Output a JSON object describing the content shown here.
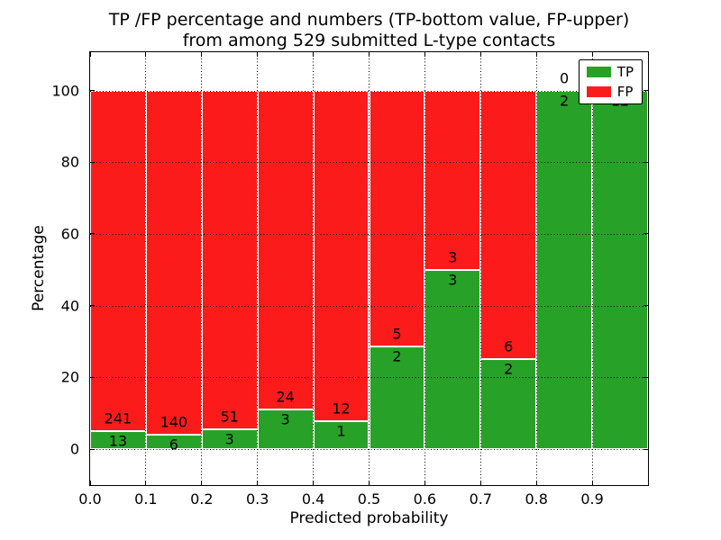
{
  "title": {
    "line1": "TP /FP percentage and numbers (TP-bottom value, FP-upper)",
    "line2": "from among 529 submitted L-type contacts"
  },
  "axes": {
    "xlabel": "Predicted probability",
    "ylabel": "Percentage",
    "x_tick_values": [
      0.0,
      0.1,
      0.2,
      0.3,
      0.4,
      0.5,
      0.6,
      0.7,
      0.8,
      0.9
    ],
    "x_tick_labels": [
      "0.0",
      "0.1",
      "0.2",
      "0.3",
      "0.4",
      "0.5",
      "0.6",
      "0.7",
      "0.8",
      "0.9"
    ],
    "y_tick_values": [
      0,
      20,
      40,
      60,
      80,
      100
    ],
    "y_tick_labels": [
      "0",
      "20",
      "40",
      "60",
      "80",
      "100"
    ]
  },
  "legend": {
    "items": [
      {
        "label": "TP",
        "color": "#28a128"
      },
      {
        "label": "FP",
        "color": "#fc1b1b"
      }
    ]
  },
  "colors": {
    "tp_green": "#28a128",
    "fp_red": "#fc1b1b",
    "grid": "#000000",
    "axis": "#000000",
    "background": "#ffffff"
  },
  "chart_data": {
    "type": "bar",
    "stacked": true,
    "normalized_to_percent": true,
    "title": "TP /FP percentage and numbers (TP-bottom value, FP-upper) from among 529 submitted L-type contacts",
    "xlabel": "Predicted probability",
    "ylabel": "Percentage",
    "categories": [
      "0.0-0.1",
      "0.1-0.2",
      "0.2-0.3",
      "0.3-0.4",
      "0.4-0.5",
      "0.5-0.6",
      "0.6-0.7",
      "0.7-0.8",
      "0.8-0.9",
      "0.9-1.0"
    ],
    "bin_edges": [
      0.0,
      0.1,
      0.2,
      0.3,
      0.4,
      0.5,
      0.6,
      0.7,
      0.8,
      0.9,
      1.0
    ],
    "series": [
      {
        "name": "TP",
        "color": "#28a128",
        "values": [
          13,
          6,
          3,
          3,
          1,
          2,
          3,
          2,
          2,
          12
        ]
      },
      {
        "name": "FP",
        "color": "#fc1b1b",
        "values": [
          241,
          140,
          51,
          24,
          12,
          5,
          3,
          6,
          0,
          0
        ]
      }
    ],
    "tp_percent": [
      5.1,
      4.1,
      5.6,
      11.1,
      7.7,
      28.6,
      50.0,
      25.0,
      100.0,
      100.0
    ],
    "total_contacts": 529,
    "xlim": [
      0.0,
      1.0
    ],
    "ylim": [
      -10.5,
      110.5
    ],
    "grid": true,
    "grid_style": "dotted",
    "legend_position": "upper right"
  }
}
